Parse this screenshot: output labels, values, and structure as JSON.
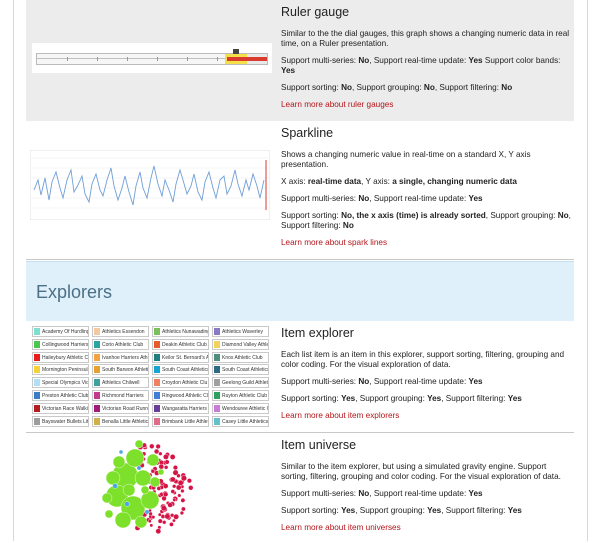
{
  "ruler": {
    "title": "Ruler gauge",
    "desc": "Similar to the the dial gauges, this graph shows a changing numeric data in real time, on a Ruler presentation.",
    "support1_pre": "Support multi-series: ",
    "support1_v1": "No",
    "support1_mid1": ", Support real-time update: ",
    "support1_v2": "Yes",
    "support1_mid2": " Support color bands: ",
    "support1_v3": "Yes",
    "support2_pre": "Support sorting: ",
    "support2_v1": "No",
    "support2_mid1": ", Support grouping: ",
    "support2_v2": "No",
    "support2_mid2": ", Support filtering: ",
    "support2_v3": "No",
    "link": "Learn more about ruler gauges",
    "colors": {
      "yellow": "#f4e04a",
      "red": "#d93b2f"
    }
  },
  "sparkline": {
    "title": "Sparkline",
    "desc": "Shows a changing numeric value in real-time on a standard X, Y axis presentation.",
    "axis_pre": "X axis: ",
    "axis_v1": "real-time data",
    "axis_mid": ", Y axis: ",
    "axis_v2": "a single, changing numeric data",
    "support1_pre": "Support multi-series: ",
    "support1_v1": "No",
    "support1_mid": ", Support real-time update: ",
    "support1_v2": "Yes",
    "support2_pre": "Support sorting: ",
    "support2_v1": "No, the x axis (time) is already sorted",
    "support2_mid1": ", Support grouping: ",
    "support2_v2": "No",
    "support2_mid2": ", Support filtering: ",
    "support2_v3": "No",
    "link": "Learn more about spark lines",
    "line_color": "#6f9fd8"
  },
  "explorers": {
    "heading": "Explorers"
  },
  "item_explorer": {
    "title": "Item explorer",
    "desc": "Each list item is an item in this explorer, support sorting, filtering, grouping and color coding. For the visual exploration of data.",
    "support1_pre": "Support multi-series: ",
    "support1_v1": "No",
    "support1_mid": ", Support real-time update: ",
    "support1_v2": "Yes",
    "support2_pre": "Support sorting: ",
    "support2_v1": "Yes",
    "support2_mid1": ", Support grouping: ",
    "support2_v2": "Yes",
    "support2_mid2": ", Support filtering: ",
    "support2_v3": "Yes",
    "link": "Learn more about item explorers",
    "tiles": [
      [
        "Academy Of Hurdling",
        "#7fe0cf"
      ],
      [
        "Athletics Essendon",
        "#f2c9a0"
      ],
      [
        "Athletics Nunawading",
        "#7bbf5a"
      ],
      [
        "Athletics Waverley",
        "#8a79c6"
      ],
      [
        "Collingwood Harriers",
        "#4bc54b"
      ],
      [
        "Corio Athletic Club",
        "#2aa3a3"
      ],
      [
        "Deakin Athletic Club",
        "#e65a2e"
      ],
      [
        "Diamond Valley Athle",
        "#f0d25c"
      ],
      [
        "Haileybury Athletic Cl",
        "#e81c1c"
      ],
      [
        "Ivanhoe Harriers Athle",
        "#f4a340"
      ],
      [
        "Keilor St. Bernard's At",
        "#1f7f80"
      ],
      [
        "Knox Athletic Club",
        "#4d8f7c"
      ],
      [
        "Mornington Peninsula",
        "#f5d23a"
      ],
      [
        "South Barwon Athletic",
        "#e5a030"
      ],
      [
        "South Coast Athletics",
        "#16a4d0"
      ],
      [
        "South Coast Athletics",
        "#2d6a84"
      ],
      [
        "Special Olympics Vict",
        "#b0e0f5"
      ],
      [
        "Athletics Chilwell",
        "#3fa0a0"
      ],
      [
        "Croydon Athletic Clu",
        "#f08060"
      ],
      [
        "Geelong Guild Athleti",
        "#a0a0a0"
      ],
      [
        "Preston Athletic Club",
        "#3b7ec8"
      ],
      [
        "Richmond Harriers",
        "#c23b8e"
      ],
      [
        "Ringwood Athletic Club",
        "#3f7fd8"
      ],
      [
        "Ruyton Athletic Club",
        "#2ea060"
      ],
      [
        "Victorian Race Walkin",
        "#b31d1d"
      ],
      [
        "Victorian Road Runne",
        "#a11c7a"
      ],
      [
        "Wangaratta Harriers",
        "#6a3d9a"
      ],
      [
        "Wendouree Athletic C",
        "#c77ad6"
      ],
      [
        "Bayswater Bullets Littl",
        "#9d9d9d"
      ],
      [
        "Benalla Little Athletic",
        "#d0b04a"
      ],
      [
        "Brimbank Little Athlet",
        "#e06a8a"
      ],
      [
        "Casey Little Athletics",
        "#63c2c9"
      ]
    ]
  },
  "item_universe": {
    "title": "Item universe",
    "desc": "Similar to the item explorer, but using a simulated gravity engine. Support sorting, filtering, grouping and color coding. For the visual exploration of data.",
    "support1_pre": "Support multi-series: ",
    "support1_v1": "No",
    "support1_mid": ", Support real-time update: ",
    "support1_v2": "Yes",
    "support2_pre": "Support sorting: ",
    "support2_v1": "Yes",
    "support2_mid1": ", Support grouping: ",
    "support2_v2": "Yes",
    "support2_mid2": ", Support filtering: ",
    "support2_v3": "Yes",
    "link": "Learn more about item universes",
    "colors": {
      "green": "#7de02a",
      "red": "#d51445",
      "blue": "#4aa6e0"
    }
  }
}
